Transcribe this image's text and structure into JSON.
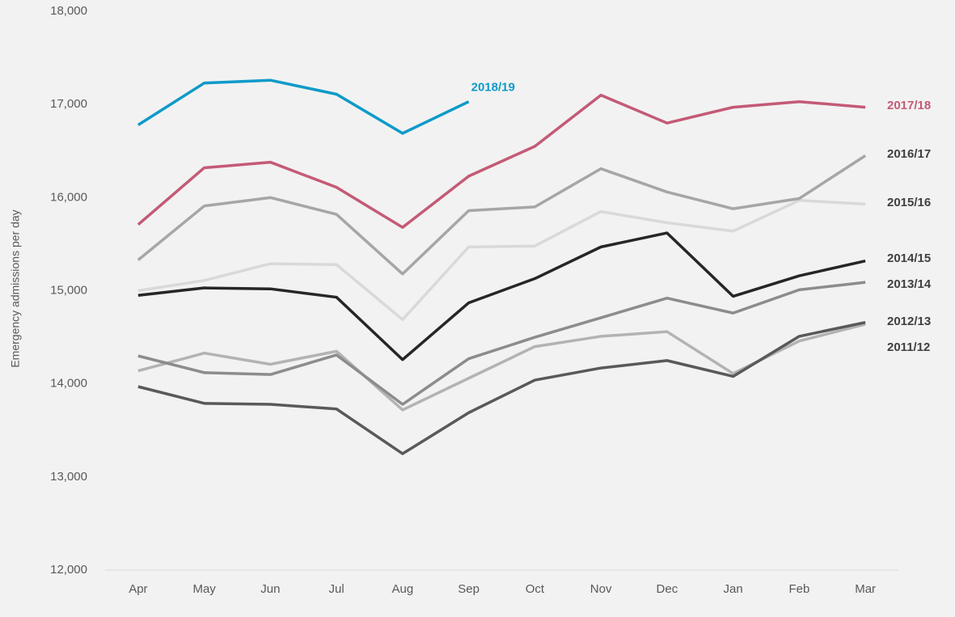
{
  "chart_data": {
    "type": "line",
    "y_label": "Emergency admissions per day",
    "categories": [
      "Apr",
      "May",
      "Jun",
      "Jul",
      "Aug",
      "Sep",
      "Oct",
      "Nov",
      "Dec",
      "Jan",
      "Feb",
      "Mar"
    ],
    "series": [
      {
        "name": "2011/12",
        "color": "#b3b3b3",
        "values": [
          14140,
          14330,
          14210,
          14350,
          13720,
          14060,
          14400,
          14510,
          14560,
          14110,
          14460,
          14640
        ]
      },
      {
        "name": "2012/13",
        "color": "#595959",
        "values": [
          13970,
          13790,
          13780,
          13730,
          13250,
          13690,
          14040,
          14170,
          14250,
          14080,
          14510,
          14660
        ]
      },
      {
        "name": "2013/14",
        "color": "#8c8c8c",
        "values": [
          14300,
          14120,
          14100,
          14310,
          13780,
          14270,
          14500,
          14710,
          14920,
          14760,
          15010,
          15090
        ]
      },
      {
        "name": "2014/15",
        "color": "#262626",
        "values": [
          14950,
          15030,
          15020,
          14930,
          14260,
          14870,
          15130,
          15470,
          15620,
          14940,
          15160,
          15320
        ]
      },
      {
        "name": "2015/16",
        "color": "#d9d9d9",
        "values": [
          15000,
          15110,
          15290,
          15280,
          14690,
          15470,
          15480,
          15850,
          15730,
          15640,
          15970,
          15930
        ]
      },
      {
        "name": "2016/17",
        "color": "#a6a6a6",
        "values": [
          15330,
          15910,
          16000,
          15820,
          15180,
          15860,
          15900,
          16310,
          16060,
          15880,
          15990,
          16450
        ]
      },
      {
        "name": "2017/18",
        "color": "#c45a76",
        "values": [
          15710,
          16320,
          16380,
          16110,
          15680,
          16230,
          16550,
          17100,
          16800,
          16970,
          17030,
          16970
        ]
      },
      {
        "name": "2018/19",
        "color": "#0e9ac9",
        "values": [
          16780,
          17230,
          17260,
          17110,
          16690,
          17030,
          null,
          null,
          null,
          null,
          null,
          null
        ]
      }
    ],
    "ylim": [
      12000,
      18000
    ],
    "yticks": [
      {
        "value": 12000,
        "label": "12,000"
      },
      {
        "value": 13000,
        "label": "13,000"
      },
      {
        "value": 14000,
        "label": "14,000"
      },
      {
        "value": 15000,
        "label": "15,000"
      },
      {
        "value": 16000,
        "label": "16,000"
      },
      {
        "value": 17000,
        "label": "17,000"
      },
      {
        "value": 18000,
        "label": "18,000"
      }
    ],
    "grid": false
  }
}
